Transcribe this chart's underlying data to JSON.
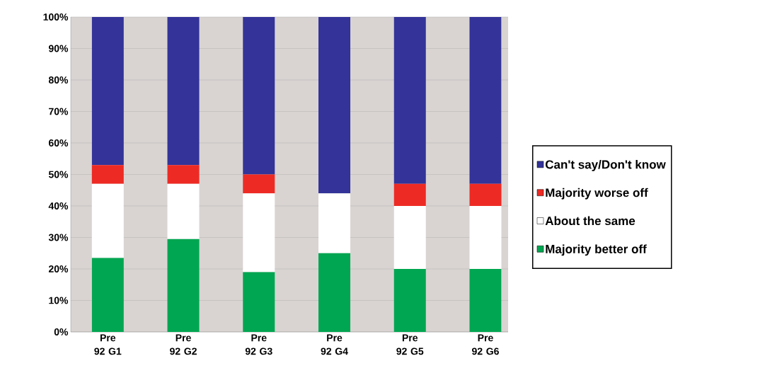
{
  "chart_data": {
    "type": "bar",
    "stacked": true,
    "categories": [
      "Pre 92 G1",
      "Pre 92 G2",
      "Pre 92 G3",
      "Pre 92 G4",
      "Pre 92 G5",
      "Pre 92 G6"
    ],
    "series": [
      {
        "name": "Majority better off",
        "color": "#00a651",
        "values": [
          23.5,
          29.5,
          19,
          25,
          20,
          20
        ]
      },
      {
        "name": "About the same",
        "color": "#ffffff",
        "values": [
          23.5,
          17.5,
          25,
          19,
          20,
          20
        ]
      },
      {
        "name": "Majority worse off",
        "color": "#ee2a24",
        "values": [
          6,
          6,
          6,
          0,
          7,
          7
        ]
      },
      {
        "name": "Can't say/Don't know",
        "color": "#333399",
        "values": [
          47,
          47,
          50,
          56,
          53,
          53
        ]
      }
    ],
    "ylim": [
      0,
      100
    ],
    "yticks": [
      {
        "value": 0,
        "label": "0%"
      },
      {
        "value": 10,
        "label": "10%"
      },
      {
        "value": 20,
        "label": "20%"
      },
      {
        "value": 30,
        "label": "30%"
      },
      {
        "value": 40,
        "label": "40%"
      },
      {
        "value": 50,
        "label": "50%"
      },
      {
        "value": 60,
        "label": "60%"
      },
      {
        "value": 70,
        "label": "70%"
      },
      {
        "value": 80,
        "label": "80%"
      },
      {
        "value": 90,
        "label": "90%"
      },
      {
        "value": 100,
        "label": "100%"
      }
    ],
    "grid": "y",
    "legend": "right"
  }
}
